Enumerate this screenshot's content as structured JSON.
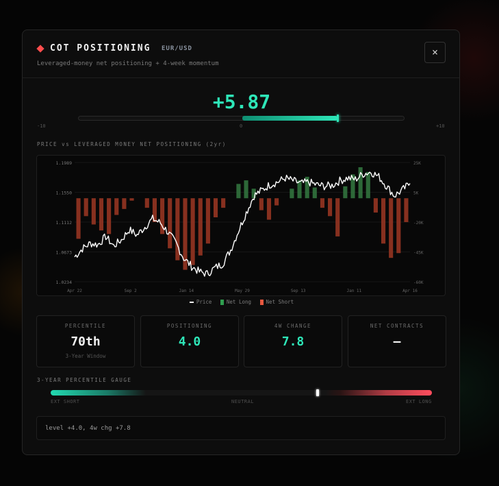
{
  "window": {
    "title": "COT POSITIONING",
    "pair": "EUR/USD",
    "subtitle": "Leveraged-money net positioning + 4-week momentum",
    "close_label": "×"
  },
  "score": {
    "value": 5.87,
    "display": "+5.87",
    "min": -10,
    "max": 10,
    "min_label": "-10",
    "mid_label": "0",
    "max_label": "+10"
  },
  "chart_section_label": "PRICE vs LEVERAGED MONEY NET POSITIONING (2yr)",
  "chart_data": {
    "type": "bar+line",
    "x_tick_labels": [
      "Apr 22",
      "Sep 2",
      "Jan 14",
      "May 29",
      "Sep 13",
      "Jan 11",
      "Apr 16"
    ],
    "left_axis": {
      "ticks": [
        "1.1989",
        "1.1550",
        "1.1112",
        "1.0673",
        "1.0234"
      ],
      "range": [
        1.0234,
        1.1989
      ]
    },
    "right_axis": {
      "ticks": [
        "25K",
        "5K",
        "-20K",
        "-45K",
        "-60K"
      ],
      "range": [
        -70,
        30
      ]
    },
    "series": [
      {
        "name": "Price",
        "color": "#ffffff",
        "values": [
          1.06,
          1.072,
          1.08,
          1.078,
          1.09,
          1.076,
          1.085,
          1.1,
          1.092,
          1.104,
          1.116,
          1.11,
          1.096,
          1.08,
          1.058,
          1.046,
          1.038,
          1.035,
          1.044,
          1.05,
          1.07,
          1.098,
          1.125,
          1.15,
          1.158,
          1.166,
          1.17,
          1.176,
          1.172,
          1.168,
          1.17,
          1.166,
          1.164,
          1.165,
          1.172,
          1.176,
          1.174,
          1.182,
          1.185,
          1.178,
          1.164,
          1.15,
          1.158,
          1.168
        ]
      },
      {
        "name": "Net Long",
        "color": "#2f9e4f",
        "values": [
          0,
          3,
          0,
          0,
          0,
          0,
          0,
          0,
          0,
          0,
          0,
          0,
          0,
          0,
          0,
          0,
          0,
          0,
          0,
          0,
          0,
          12,
          15,
          8,
          0,
          0,
          0,
          0,
          8,
          15,
          18,
          9,
          0,
          0,
          0,
          10,
          20,
          26,
          22,
          0,
          0,
          0,
          0,
          0
        ]
      },
      {
        "name": "Net Short",
        "color": "#e8583f",
        "values": [
          -34,
          -18,
          -22,
          -27,
          -30,
          -14,
          -9,
          -2,
          0,
          -8,
          -20,
          -30,
          -42,
          -52,
          -60,
          -56,
          -48,
          -38,
          -16,
          -8,
          0,
          0,
          0,
          0,
          -10,
          -18,
          -6,
          0,
          0,
          0,
          0,
          0,
          -8,
          -15,
          -32,
          0,
          0,
          0,
          0,
          -12,
          -38,
          -50,
          -46,
          -20
        ]
      }
    ]
  },
  "legend": [
    "Price",
    "Net Long",
    "Net Short"
  ],
  "stats": [
    {
      "label": "PERCENTILE",
      "value": "70th",
      "sub": "3-Year Window",
      "color": "#f2f2f2"
    },
    {
      "label": "POSITIONING",
      "value": "4.0",
      "sub": "",
      "color": "#2ee6b8"
    },
    {
      "label": "4W CHANGE",
      "value": "7.8",
      "sub": "",
      "color": "#2ee6b8"
    },
    {
      "label": "NET CONTRACTS",
      "value": "—",
      "sub": "",
      "color": "#f2f2f2"
    }
  ],
  "gauge": {
    "section_label": "3-YEAR PERCENTILE GAUGE",
    "percentile": 70,
    "left_label": "EXT SHORT",
    "mid_label": "NEUTRAL",
    "right_label": "EXT LONG"
  },
  "note": "level +4.0, 4w chg +7.8"
}
